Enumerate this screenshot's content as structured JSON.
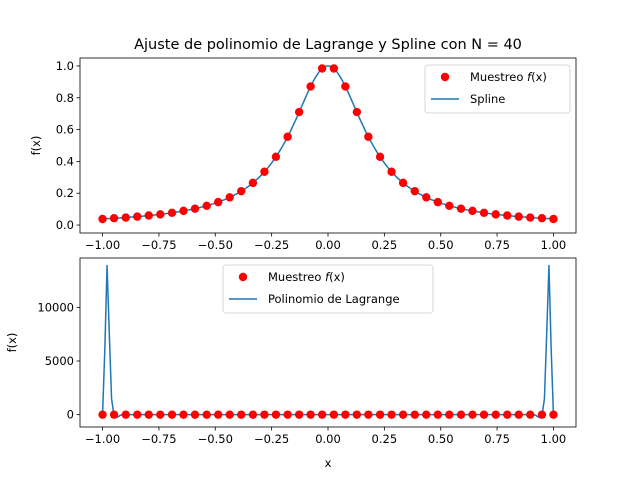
{
  "figure": {
    "title": "Ajuste de polinomio de Lagrange y Spline con N = 40"
  },
  "chart_data": [
    {
      "type": "line",
      "title": "Ajuste de polinomio de Lagrange y Spline con N = 40",
      "xlabel": "",
      "ylabel": "f(x)",
      "xlim": [
        -1.1,
        1.1
      ],
      "ylim": [
        -0.05,
        1.05
      ],
      "xticks": [
        -1.0,
        -0.75,
        -0.5,
        -0.25,
        0.0,
        0.25,
        0.5,
        0.75,
        1.0
      ],
      "xtick_labels": [
        "−1.00",
        "−0.75",
        "−0.50",
        "−0.25",
        "0.00",
        "0.25",
        "0.50",
        "0.75",
        "1.00"
      ],
      "yticks": [
        0.0,
        0.2,
        0.4,
        0.6,
        0.8,
        1.0
      ],
      "ytick_labels": [
        "0.0",
        "0.2",
        "0.4",
        "0.6",
        "0.8",
        "1.0"
      ],
      "grid": false,
      "legend": "upper right",
      "colors": {
        "sample": "#ff0000",
        "curve": "#1f77b4"
      },
      "series": [
        {
          "name": "Muestreo f(x)",
          "kind": "scatter",
          "x": [
            -1.0,
            -0.949,
            -0.897,
            -0.846,
            -0.795,
            -0.744,
            -0.692,
            -0.641,
            -0.59,
            -0.538,
            -0.487,
            -0.436,
            -0.385,
            -0.333,
            -0.282,
            -0.231,
            -0.179,
            -0.128,
            -0.077,
            -0.026,
            0.026,
            0.077,
            0.128,
            0.179,
            0.231,
            0.282,
            0.333,
            0.385,
            0.436,
            0.487,
            0.538,
            0.59,
            0.641,
            0.692,
            0.744,
            0.795,
            0.846,
            0.897,
            0.949,
            1.0
          ],
          "y": [
            0.038,
            0.043,
            0.047,
            0.053,
            0.06,
            0.067,
            0.077,
            0.089,
            0.103,
            0.121,
            0.144,
            0.174,
            0.213,
            0.265,
            0.335,
            0.429,
            0.555,
            0.71,
            0.871,
            0.984,
            0.984,
            0.871,
            0.71,
            0.555,
            0.429,
            0.335,
            0.265,
            0.213,
            0.174,
            0.144,
            0.121,
            0.103,
            0.089,
            0.077,
            0.067,
            0.06,
            0.053,
            0.047,
            0.043,
            0.038
          ]
        },
        {
          "name": "Spline",
          "kind": "line",
          "function": "runge",
          "x_range": [
            -1.0,
            1.0
          ]
        }
      ]
    },
    {
      "type": "line",
      "title": "",
      "xlabel": "x",
      "ylabel": "f(x)",
      "xlim": [
        -1.1,
        1.1
      ],
      "ylim": [
        -1150,
        14600
      ],
      "xticks": [
        -1.0,
        -0.75,
        -0.5,
        -0.25,
        0.0,
        0.25,
        0.5,
        0.75,
        1.0
      ],
      "xtick_labels": [
        "−1.00",
        "−0.75",
        "−0.50",
        "−0.25",
        "0.00",
        "0.25",
        "0.50",
        "0.75",
        "1.00"
      ],
      "yticks": [
        0,
        5000,
        10000
      ],
      "ytick_labels": [
        "0",
        "5000",
        "10000"
      ],
      "grid": false,
      "legend": "upper center",
      "colors": {
        "sample": "#ff0000",
        "curve": "#1f77b4"
      },
      "series": [
        {
          "name": "Muestreo f(x)",
          "kind": "scatter",
          "x": [
            -1.0,
            -0.949,
            -0.897,
            -0.846,
            -0.795,
            -0.744,
            -0.692,
            -0.641,
            -0.59,
            -0.538,
            -0.487,
            -0.436,
            -0.385,
            -0.333,
            -0.282,
            -0.231,
            -0.179,
            -0.128,
            -0.077,
            -0.026,
            0.026,
            0.077,
            0.128,
            0.179,
            0.231,
            0.282,
            0.333,
            0.385,
            0.436,
            0.487,
            0.538,
            0.59,
            0.641,
            0.692,
            0.744,
            0.795,
            0.846,
            0.897,
            0.949,
            1.0
          ],
          "y": [
            0.038,
            0.043,
            0.047,
            0.053,
            0.06,
            0.067,
            0.077,
            0.089,
            0.103,
            0.121,
            0.144,
            0.174,
            0.213,
            0.265,
            0.335,
            0.429,
            0.555,
            0.71,
            0.871,
            0.984,
            0.984,
            0.871,
            0.71,
            0.555,
            0.429,
            0.335,
            0.265,
            0.213,
            0.174,
            0.144,
            0.121,
            0.103,
            0.089,
            0.077,
            0.067,
            0.06,
            0.053,
            0.047,
            0.043,
            0.038
          ]
        },
        {
          "name": "Polinomio de Lagrange",
          "kind": "line",
          "x": [
            -1.0,
            -0.99,
            -0.98,
            -0.97,
            -0.96,
            -0.95,
            -0.94,
            -0.93,
            -0.92,
            -0.9,
            -0.85,
            -0.5,
            0.0,
            0.5,
            0.85,
            0.9,
            0.92,
            0.93,
            0.94,
            0.95,
            0.96,
            0.97,
            0.98,
            0.99,
            1.0
          ],
          "y": [
            0.0,
            6000,
            13900,
            7500,
            1500,
            0.0,
            -280,
            -180,
            -40,
            0.0,
            0.0,
            0.0,
            1.0,
            0.0,
            0.0,
            0.0,
            -40,
            -180,
            -280,
            0.0,
            1500,
            7500,
            13900,
            6000,
            0.0
          ]
        }
      ]
    }
  ]
}
